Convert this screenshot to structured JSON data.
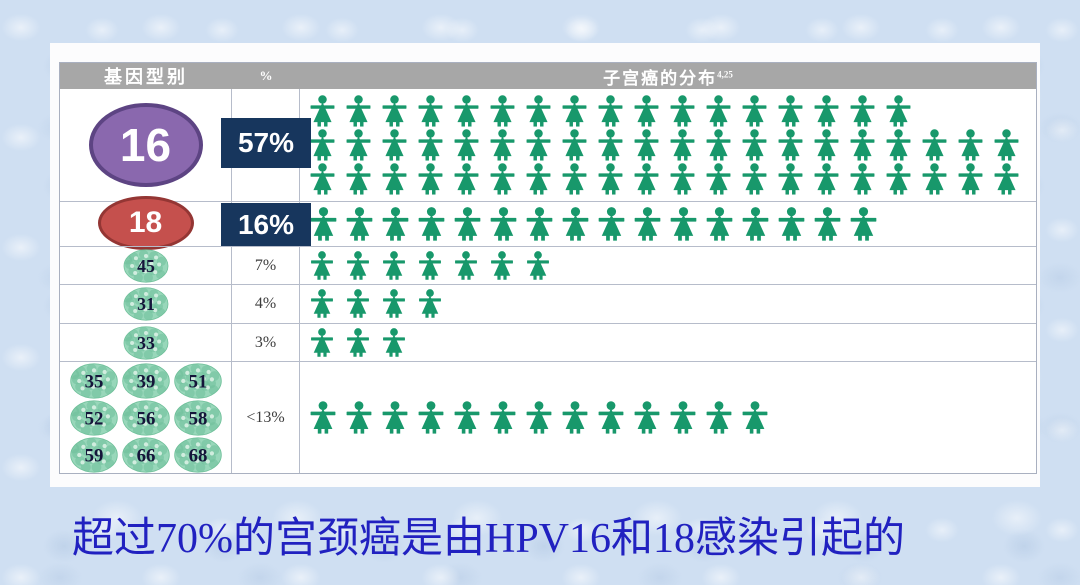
{
  "header": {
    "genotype": "基因型别",
    "percent": "%",
    "distribution": "子宫癌的分布",
    "distribution_superscript": "4,25"
  },
  "caption": "超过70%的宫颈癌是由HPV16和18感染引起的",
  "colors": {
    "figure-green": "#18986b",
    "type16-purple": "#8a68ae",
    "type16-border": "#5d4483",
    "type18-red": "#c5504d",
    "type18-border": "#943634",
    "percent-box-navy": "#17365d",
    "header-gray": "#a7a7a7",
    "virus-green": "#98d7ba",
    "virus-spot": "#6fc09a",
    "virus-highlight": "#d9f1e4",
    "virus-text": "#15153a",
    "caption-blue": "#2121c0",
    "grid-line": "#b6bcca"
  },
  "chart_data": {
    "type": "pictogram",
    "title": "子宫癌的分布",
    "icon": "woman-figure",
    "icon_unit_percent": 1,
    "legend_position": "none",
    "rows": [
      {
        "genotype": "16",
        "percent": "57%",
        "value": 57,
        "icon_lines": [
          17,
          20,
          20
        ],
        "badge": "purple-ellipse",
        "percent_style": "navy-box"
      },
      {
        "genotype": "18",
        "percent": "16%",
        "value": 16,
        "icon_lines": [
          16
        ],
        "badge": "red-ellipse",
        "percent_style": "navy-box"
      },
      {
        "genotype": "45",
        "percent": "7%",
        "value": 7,
        "icon_lines": [
          7
        ],
        "badge": "virus-ball",
        "percent_style": "plain"
      },
      {
        "genotype": "31",
        "percent": "4%",
        "value": 4,
        "icon_lines": [
          4
        ],
        "badge": "virus-ball",
        "percent_style": "plain"
      },
      {
        "genotype": "33",
        "percent": "3%",
        "value": 3,
        "icon_lines": [
          3
        ],
        "badge": "virus-ball",
        "percent_style": "plain"
      },
      {
        "genotype_group": [
          "35",
          "39",
          "51",
          "52",
          "56",
          "58",
          "59",
          "66",
          "68"
        ],
        "percent": "<13%",
        "value": 13,
        "icon_lines": [
          13
        ],
        "badge": "virus-ball-grid",
        "percent_style": "plain"
      }
    ]
  }
}
